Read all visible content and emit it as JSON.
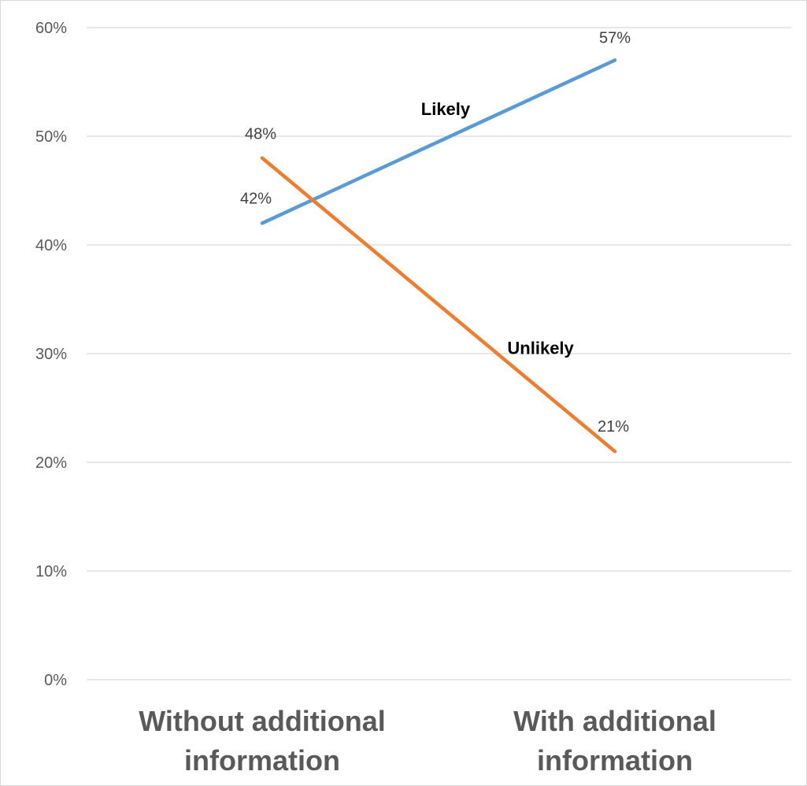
{
  "chart_data": {
    "type": "line",
    "categories": [
      "Without additional information",
      "With additional information"
    ],
    "category_lines": [
      [
        "Without additional",
        "information"
      ],
      [
        "With additional",
        "information"
      ]
    ],
    "series": [
      {
        "name": "Likely",
        "values": [
          42,
          57
        ],
        "data_labels": [
          "42%",
          "57%"
        ],
        "color": "#5b9bd5"
      },
      {
        "name": "Unlikely",
        "values": [
          48,
          21
        ],
        "data_labels": [
          "48%",
          "21%"
        ],
        "color": "#ed7d31"
      }
    ],
    "y_ticks": [
      0,
      10,
      20,
      30,
      40,
      50,
      60
    ],
    "y_tick_labels": [
      "0%",
      "10%",
      "20%",
      "30%",
      "40%",
      "50%",
      "60%"
    ],
    "ylim": [
      0,
      60
    ],
    "grid": true,
    "legend": "none",
    "title": "",
    "xlabel": "",
    "ylabel": "",
    "gridline_color": "#d9d9d9"
  }
}
